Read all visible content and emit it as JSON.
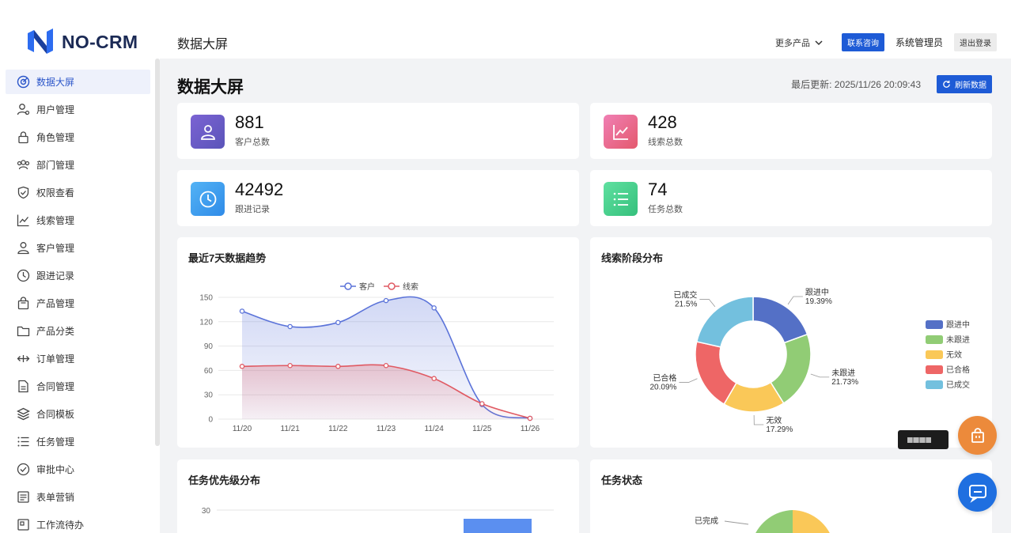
{
  "app": {
    "logo_text": "NO-CRM",
    "header_title": "数据大屏",
    "more_products": "更多产品",
    "contact": "联系咨询",
    "admin": "系统管理员",
    "logout": "退出登录"
  },
  "sidebar": {
    "items": [
      {
        "label": "数据大屏",
        "icon": "dashboard-icon"
      },
      {
        "label": "用户管理",
        "icon": "user-gear-icon"
      },
      {
        "label": "角色管理",
        "icon": "lock-icon"
      },
      {
        "label": "部门管理",
        "icon": "group-icon"
      },
      {
        "label": "权限查看",
        "icon": "shield-icon"
      },
      {
        "label": "线索管理",
        "icon": "line-chart-icon"
      },
      {
        "label": "客户管理",
        "icon": "user-icon"
      },
      {
        "label": "跟进记录",
        "icon": "clock-icon"
      },
      {
        "label": "产品管理",
        "icon": "bag-icon"
      },
      {
        "label": "产品分类",
        "icon": "folder-icon"
      },
      {
        "label": "订单管理",
        "icon": "arrows-icon"
      },
      {
        "label": "合同管理",
        "icon": "document-icon"
      },
      {
        "label": "合同模板",
        "icon": "layers-icon"
      },
      {
        "label": "任务管理",
        "icon": "list-icon"
      },
      {
        "label": "审批中心",
        "icon": "check-circle-icon"
      },
      {
        "label": "表单营销",
        "icon": "form-icon"
      },
      {
        "label": "工作流待办",
        "icon": "workflow-icon"
      }
    ]
  },
  "main": {
    "title": "数据大屏",
    "last_update": "最后更新: 2025/11/26 20:09:43",
    "refresh": "刷新数据",
    "stats": [
      {
        "value": "881",
        "label": "客户总数",
        "icon": "user-icon",
        "color": "#6c5fc7"
      },
      {
        "value": "428",
        "label": "线索总数",
        "icon": "line-chart-icon",
        "color": "#e86a9a"
      },
      {
        "value": "42492",
        "label": "跟进记录",
        "icon": "clock-icon",
        "color": "#3aa2ee"
      },
      {
        "value": "74",
        "label": "任务总数",
        "icon": "list-icon",
        "color": "#45cf88"
      }
    ],
    "panels": {
      "trend_title": "最近7天数据趋势",
      "stage_title": "线索阶段分布",
      "priority_title": "任务优先级分布",
      "status_title": "任务状态"
    }
  },
  "chart_data": [
    {
      "type": "line",
      "title": "最近7天数据趋势",
      "x": [
        "11/20",
        "11/21",
        "11/22",
        "11/23",
        "11/24",
        "11/25",
        "11/26"
      ],
      "series": [
        {
          "name": "客户",
          "values": [
            133,
            114,
            119,
            146,
            137,
            18,
            1
          ],
          "color": "#5b73d9"
        },
        {
          "name": "线索",
          "values": [
            65,
            66,
            65,
            66,
            50,
            19,
            1
          ],
          "color": "#e05a63"
        }
      ],
      "ylim": [
        0,
        150
      ],
      "yticks": [
        0,
        30,
        60,
        90,
        120,
        150
      ],
      "legend": "top-center",
      "grid": true
    },
    {
      "type": "pie",
      "title": "线索阶段分布",
      "slices": [
        {
          "name": "跟进中",
          "value": 19.39,
          "label": "19.39%",
          "color": "#5470c6"
        },
        {
          "name": "未跟进",
          "value": 21.73,
          "label": "21.73%",
          "color": "#91cc75"
        },
        {
          "name": "无效",
          "value": 17.29,
          "label": "17.29%",
          "color": "#fac858"
        },
        {
          "name": "已合格",
          "value": 20.09,
          "label": "20.09%",
          "color": "#ee6666"
        },
        {
          "name": "已成交",
          "value": 21.5,
          "label": "21.5%",
          "color": "#73c0de"
        }
      ],
      "legend": "right"
    },
    {
      "type": "bar",
      "title": "任务优先级分布",
      "yticks_visible": [
        30
      ],
      "partial": true
    },
    {
      "type": "pie",
      "title": "任务状态",
      "visible_labels": [
        "已完成"
      ],
      "partial": true
    }
  ]
}
